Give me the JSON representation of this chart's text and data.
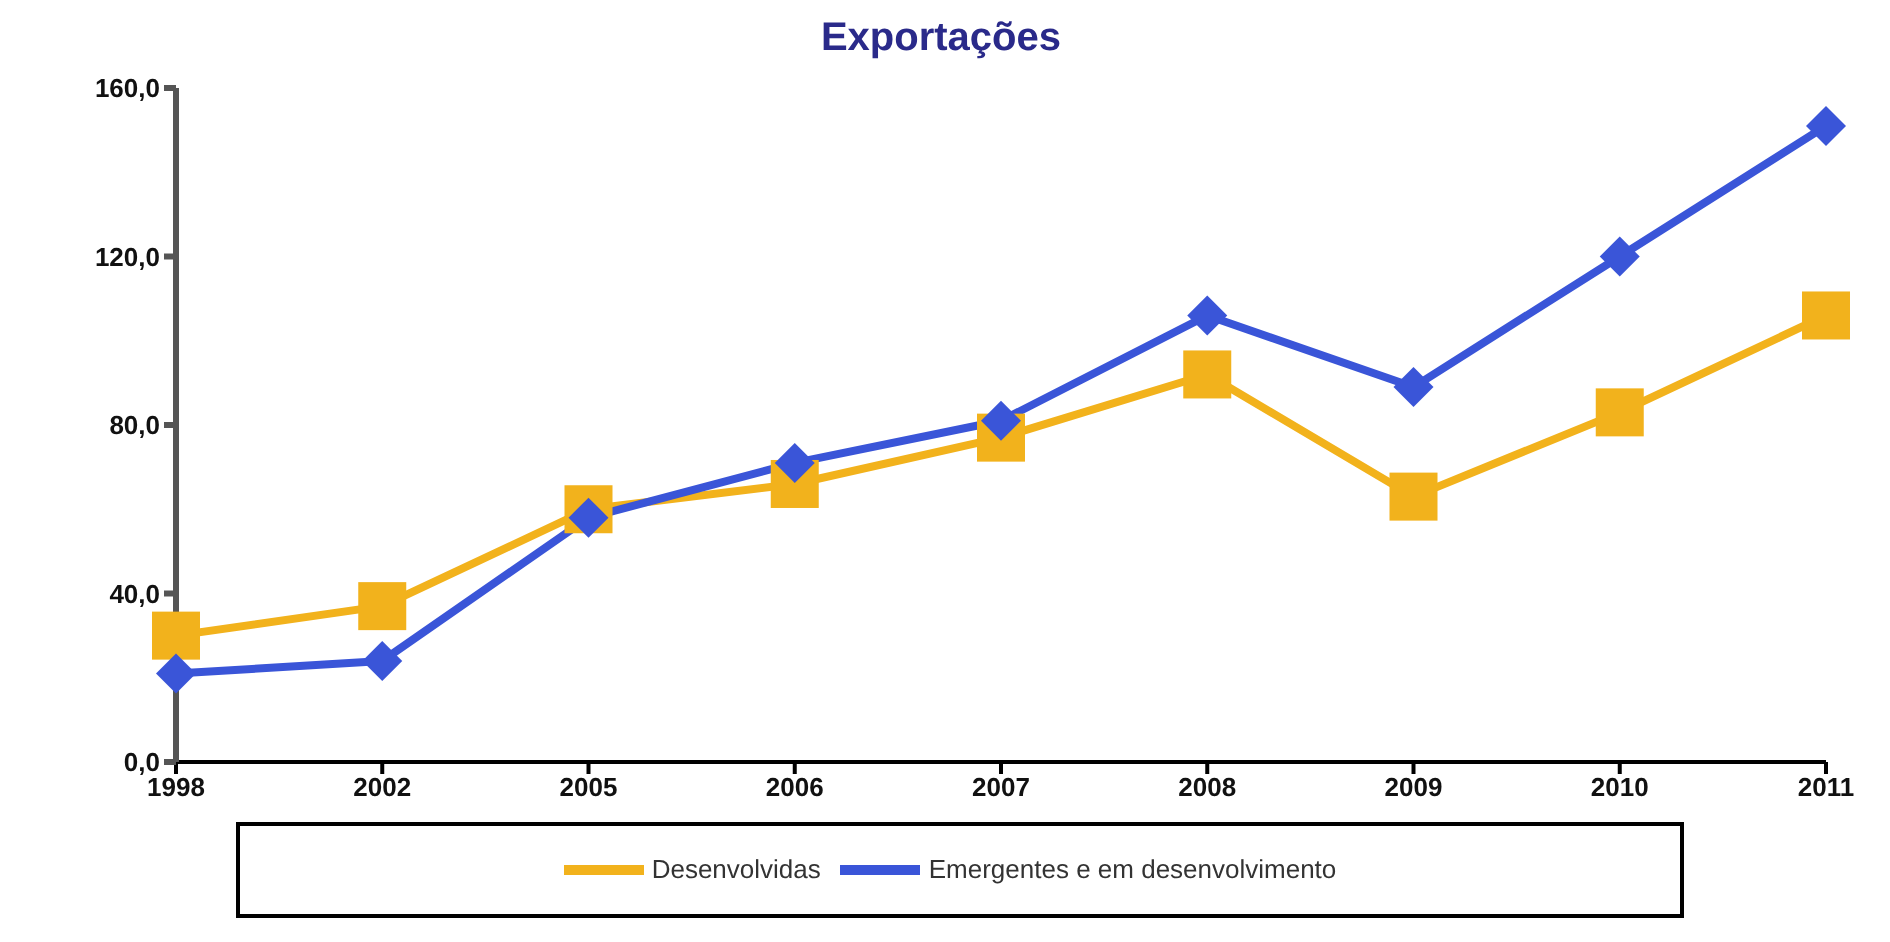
{
  "chart_data": {
    "type": "line",
    "title": "Exportações",
    "categories": [
      "1998",
      "2002",
      "2005",
      "2006",
      "2007",
      "2008",
      "2009",
      "2010",
      "2011"
    ],
    "series": [
      {
        "name": "Desenvolvidas",
        "color": "#f2b21c",
        "marker": "square",
        "values": [
          30,
          37,
          60,
          66,
          77,
          92,
          63,
          83,
          106
        ]
      },
      {
        "name": "Emergentes e em desenvolvimento",
        "color": "#3a55d8",
        "marker": "diamond",
        "values": [
          21,
          24,
          58,
          71,
          81,
          106,
          89,
          120,
          151
        ]
      }
    ],
    "ylim": [
      0,
      160
    ],
    "yticks": [
      {
        "value": 0,
        "label": "0,0"
      },
      {
        "value": 40,
        "label": "40,0"
      },
      {
        "value": 80,
        "label": "80,0"
      },
      {
        "value": 120,
        "label": "120,0"
      },
      {
        "value": 160,
        "label": "160,0"
      }
    ],
    "grid": false,
    "legend": "bottom"
  }
}
